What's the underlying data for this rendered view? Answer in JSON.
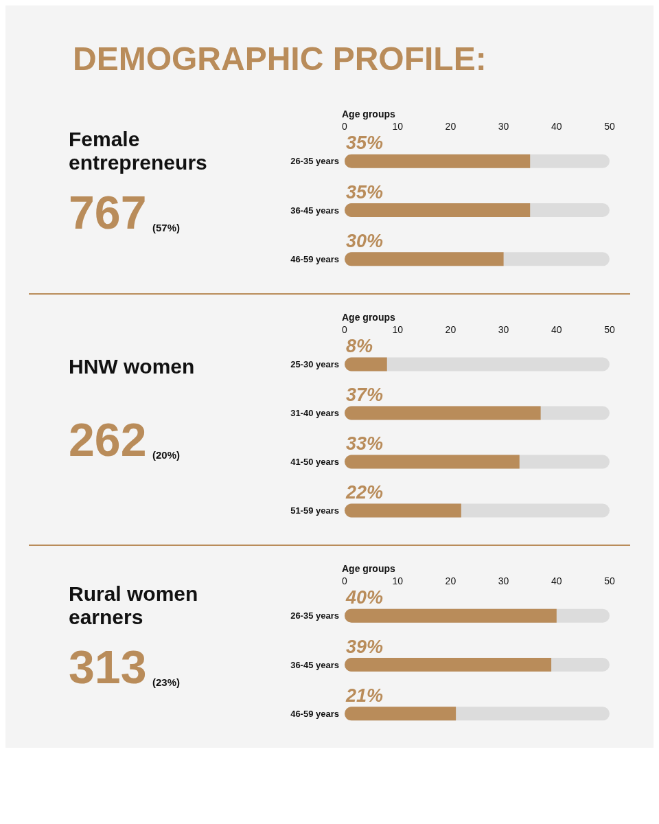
{
  "chart_data": [
    {
      "type": "other",
      "title": "DEMOGRAPHIC PROFILE:"
    },
    {
      "type": "bar",
      "orientation": "horizontal",
      "title": "Female entrepreneurs",
      "annotations": [
        "767",
        "(57%)"
      ],
      "xlabel": "Age groups",
      "categories": [
        "26-35 years",
        "36-45 years",
        "46-59 years"
      ],
      "values": [
        35,
        35,
        30
      ],
      "value_labels": [
        "35%",
        "35%",
        "30%"
      ],
      "color": "#b98c5a",
      "xlim": [
        0,
        50
      ],
      "xticks": [
        0,
        10,
        20,
        30,
        40,
        50
      ]
    },
    {
      "type": "bar",
      "orientation": "horizontal",
      "title": "HNW women",
      "annotations": [
        "262",
        "(20%)"
      ],
      "xlabel": "Age groups",
      "categories": [
        "25-30 years",
        "31-40 years",
        "41-50 years",
        "51-59 years"
      ],
      "values": [
        8,
        37,
        33,
        22
      ],
      "value_labels": [
        "8%",
        "37%",
        "33%",
        "22%"
      ],
      "color": "#b98c5a",
      "xlim": [
        0,
        50
      ],
      "xticks": [
        0,
        10,
        20,
        30,
        40,
        50
      ]
    },
    {
      "type": "bar",
      "orientation": "horizontal",
      "title": "Rural women earners",
      "annotations": [
        "313",
        "(23%)"
      ],
      "xlabel": "Age groups",
      "categories": [
        "26-35 years",
        "36-45 years",
        "46-59 years"
      ],
      "values": [
        40,
        39,
        21
      ],
      "value_labels": [
        "40%",
        "39%",
        "21%"
      ],
      "color": "#b98c5a",
      "xlim": [
        0,
        50
      ],
      "xticks": [
        0,
        10,
        20,
        30,
        40,
        50
      ]
    }
  ]
}
